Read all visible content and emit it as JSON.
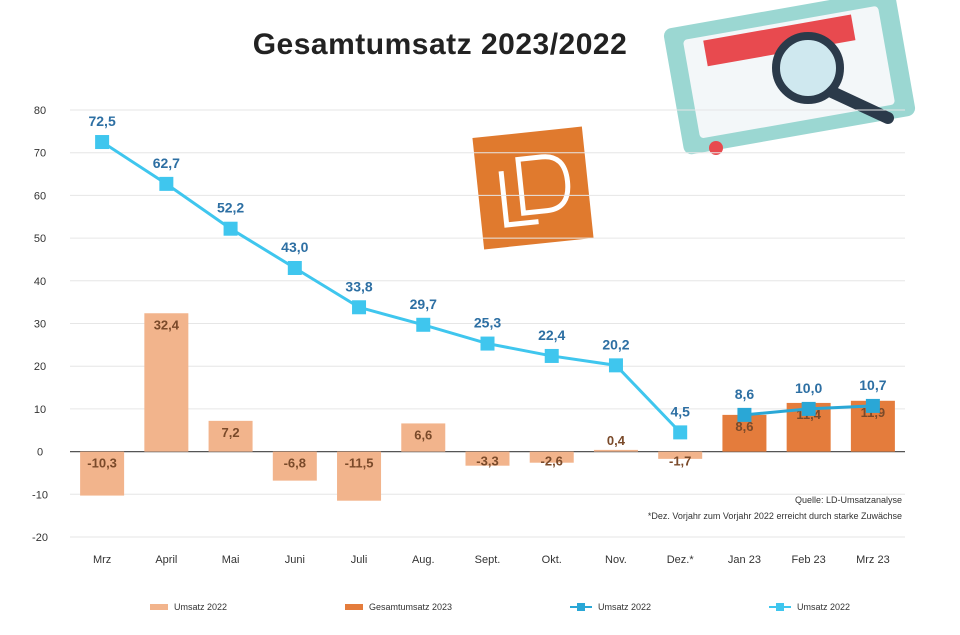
{
  "chart_data": {
    "type": "bar",
    "title": "Gesamtumsatz 2023/2022",
    "categories": [
      "Mrz",
      "April",
      "Mai",
      "Juni",
      "Juli",
      "Aug.",
      "Sept.",
      "Okt.",
      "Nov.",
      "Dez.*",
      "Jan 23",
      "Feb 23",
      "Mrz 23"
    ],
    "ylim": [
      -20,
      80
    ],
    "yticks": [
      -20,
      -10,
      0,
      10,
      20,
      30,
      40,
      50,
      60,
      70,
      80
    ],
    "grid": true,
    "legend_position": "bottom",
    "series": [
      {
        "name": "Umsatz 2022",
        "type": "bar",
        "color": "#f2b48c",
        "values": [
          -10.3,
          32.4,
          7.2,
          -6.8,
          -11.5,
          6.6,
          -3.3,
          -2.6,
          0.4,
          -1.7,
          null,
          null,
          null
        ],
        "labels": [
          "-10,3",
          "32,4",
          "7,2",
          "-6,8",
          "-11,5",
          "6,6",
          "-3,3",
          "-2,6",
          "0,4",
          "-1,7",
          "",
          "",
          ""
        ]
      },
      {
        "name": "Gesamtumsatz 2023",
        "type": "bar",
        "color": "#e47c3c",
        "values": [
          null,
          null,
          null,
          null,
          null,
          null,
          null,
          null,
          null,
          null,
          8.6,
          11.4,
          11.9
        ],
        "labels": [
          "",
          "",
          "",
          "",
          "",
          "",
          "",
          "",
          "",
          "",
          "8,6",
          "11,4",
          "11,9"
        ]
      },
      {
        "name": "Umsatz 2022",
        "type": "line",
        "color": "#2aa7d6",
        "values": [
          null,
          null,
          null,
          null,
          null,
          null,
          null,
          null,
          null,
          null,
          8.6,
          10.0,
          10.7
        ],
        "labels": [
          "",
          "",
          "",
          "",
          "",
          "",
          "",
          "",
          "",
          "",
          "8,6",
          "10,0",
          "10,7"
        ]
      },
      {
        "name": "Umsatz 2022",
        "type": "line",
        "color": "#3fc6ee",
        "values": [
          72.5,
          62.7,
          52.2,
          43.0,
          33.8,
          29.7,
          25.3,
          22.4,
          20.2,
          4.5,
          null,
          null,
          null
        ],
        "labels": [
          "72,5",
          "62,7",
          "52,2",
          "43,0",
          "33,8",
          "29,7",
          "25,3",
          "22,4",
          "20,2",
          "4,5",
          "",
          "",
          ""
        ]
      }
    ]
  },
  "notes": {
    "source": "Quelle: LD-Umsatzanalyse",
    "footnote": "*Dez. Vorjahr zum Vorjahr 2022 erreicht durch starke Zuwächse"
  },
  "colors": {
    "axis_text": "#333333",
    "grid": "#e6e6e6",
    "logo": "#e07a2e",
    "value_label_line": "#2d6fa3"
  }
}
